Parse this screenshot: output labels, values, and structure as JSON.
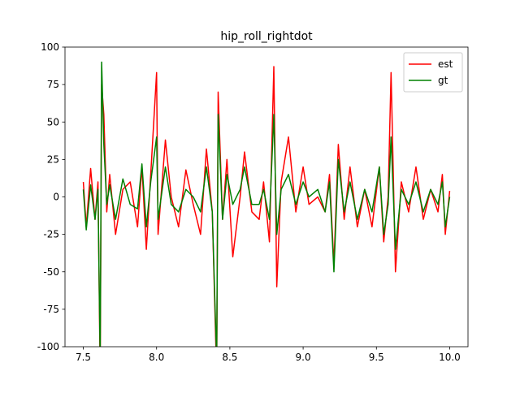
{
  "chart_data": {
    "type": "line",
    "title": "hip_roll_rightdot",
    "x": [
      7.5,
      7.52,
      7.55,
      7.58,
      7.6,
      7.615,
      7.625,
      7.64,
      7.66,
      7.68,
      7.72,
      7.77,
      7.82,
      7.87,
      7.9,
      7.93,
      7.96,
      8.0,
      8.01,
      8.06,
      8.1,
      8.15,
      8.2,
      8.25,
      8.3,
      8.34,
      8.38,
      8.41,
      8.42,
      8.45,
      8.48,
      8.52,
      8.57,
      8.6,
      8.65,
      8.7,
      8.73,
      8.77,
      8.8,
      8.82,
      8.85,
      8.9,
      8.95,
      9.0,
      9.04,
      9.1,
      9.15,
      9.18,
      9.21,
      9.24,
      9.28,
      9.32,
      9.37,
      9.42,
      9.47,
      9.52,
      9.55,
      9.58,
      9.6,
      9.63,
      9.67,
      9.72,
      9.77,
      9.82,
      9.87,
      9.92,
      9.95,
      9.97,
      10.0
    ],
    "series": [
      {
        "name": "est",
        "color": "#ff0000",
        "values": [
          10,
          -20,
          19,
          -15,
          10,
          -120,
          75,
          55,
          -10,
          15,
          -25,
          5,
          10,
          -20,
          20,
          -35,
          15,
          83,
          -25,
          38,
          0,
          -20,
          18,
          -5,
          -25,
          32,
          -10,
          -120,
          70,
          -15,
          25,
          -40,
          0,
          30,
          -10,
          -15,
          10,
          -30,
          87,
          -60,
          10,
          40,
          -10,
          20,
          -5,
          0,
          -10,
          15,
          -45,
          35,
          -15,
          20,
          -20,
          5,
          -20,
          20,
          -30,
          0,
          83,
          -50,
          10,
          -10,
          20,
          -15,
          5,
          -10,
          15,
          -25,
          4
        ]
      },
      {
        "name": "gt",
        "color": "#008000",
        "values": [
          5,
          -22,
          8,
          -15,
          5,
          -110,
          90,
          35,
          -5,
          8,
          -15,
          12,
          -5,
          -8,
          22,
          -20,
          10,
          40,
          -15,
          20,
          -5,
          -10,
          5,
          0,
          -10,
          20,
          -10,
          -110,
          55,
          -15,
          15,
          -5,
          5,
          20,
          -5,
          -5,
          5,
          -15,
          55,
          -25,
          5,
          15,
          -5,
          10,
          0,
          5,
          -10,
          10,
          -50,
          25,
          -10,
          10,
          -15,
          5,
          -10,
          20,
          -25,
          -5,
          40,
          -35,
          5,
          -5,
          10,
          -10,
          5,
          -5,
          10,
          -20,
          0
        ]
      }
    ],
    "xlim": [
      7.375,
      10.125
    ],
    "xticks": [
      {
        "value": 7.5,
        "label": "7.5"
      },
      {
        "value": 8,
        "label": "8.0"
      },
      {
        "value": 8.5,
        "label": "8.5"
      },
      {
        "value": 9,
        "label": "9.0"
      },
      {
        "value": 9.5,
        "label": "9.5"
      },
      {
        "value": 10,
        "label": "10.0"
      }
    ],
    "ylim": [
      -100,
      100
    ],
    "yticks": [
      -100,
      -75,
      -50,
      -25,
      0,
      25,
      50,
      75,
      100
    ],
    "legend": "upper right"
  }
}
